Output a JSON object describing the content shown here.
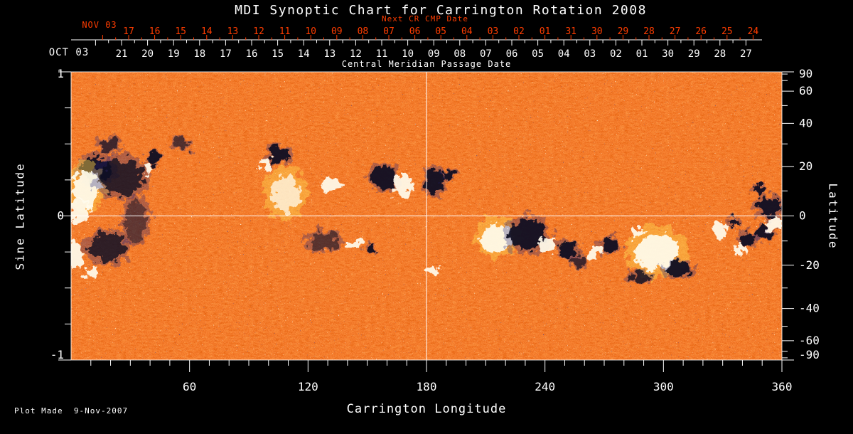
{
  "title": "MDI Synoptic Chart for Carrington Rotation 2008",
  "colors": {
    "background": "#000000",
    "text_white": "#ffffff",
    "text_red": "#ff3d00",
    "map_base": "#d03404",
    "positive_region": "#fffbec",
    "negative_region": "#07071f",
    "positive_halo": "#ffd44f",
    "crosshair": "#ffffff"
  },
  "top_axis": {
    "next_cr_label": "Next CR CMP Date",
    "next_month_label": "NOV 03",
    "next_days": [
      "17",
      "16",
      "15",
      "14",
      "13",
      "12",
      "11",
      "10",
      "09",
      "08",
      "07",
      "06",
      "05",
      "04",
      "03",
      "02",
      "01",
      "31",
      "30",
      "29",
      "28",
      "27",
      "26",
      "25",
      "24"
    ],
    "month_label": "OCT 03",
    "days": [
      "21",
      "20",
      "19",
      "18",
      "17",
      "16",
      "15",
      "14",
      "13",
      "12",
      "11",
      "10",
      "09",
      "08",
      "07",
      "06",
      "05",
      "04",
      "03",
      "02",
      "01",
      "30",
      "29",
      "28",
      "27"
    ],
    "axis_title": "Central Meridian Passage Date"
  },
  "left_axis": {
    "title": "Sine Latitude",
    "ticks": [
      "1",
      "0",
      "-1"
    ],
    "tick_values": [
      1,
      0,
      -1
    ],
    "minor_tick_values": [
      0.75,
      0.5,
      0.25,
      -0.25,
      -0.5,
      -0.75
    ]
  },
  "right_axis": {
    "title": "Latitude",
    "ticks": [
      "90",
      "60",
      "40",
      "20",
      "0",
      "-20",
      "-40",
      "-60",
      "-90"
    ],
    "tick_values": [
      90,
      60,
      40,
      20,
      0,
      -20,
      -40,
      -60,
      -90
    ],
    "minor_tick_values": [
      80,
      70,
      50,
      30,
      10,
      -10,
      -30,
      -50,
      -70,
      -80
    ]
  },
  "bottom_axis": {
    "title": "Carrington Longitude",
    "ticks": [
      "60",
      "120",
      "180",
      "240",
      "300",
      "360"
    ],
    "tick_values": [
      60,
      120,
      180,
      240,
      300,
      360
    ],
    "minor_step_deg": 10
  },
  "footer": "Plot Made  9-Nov-2007",
  "chart_data": {
    "type": "heatmap",
    "title": "MDI Synoptic Chart for Carrington Rotation 2008",
    "xlabel": "Carrington Longitude",
    "ylabel_left": "Sine Latitude",
    "ylabel_right": "Latitude",
    "x_range_deg": [
      0,
      360
    ],
    "y_range_sine": [
      -1,
      1
    ],
    "legend_position": "none",
    "grid": false,
    "crosshair": {
      "longitude_deg": 180,
      "sine_latitude": 0
    },
    "background_field": "noisy red-orange photospheric magnetic field texture with sparse navy and cream speckles",
    "features_note": "active regions; p=positive(white), ph=positive with yellow halo, n=negative(dark navy/black); w in degrees longitude, h in sine-latitude units",
    "features": [
      {
        "lon": 12.9,
        "slat": 0.32,
        "w": 15.8,
        "h": 0.18,
        "p": "n"
      },
      {
        "lon": 7.5,
        "slat": 0.2,
        "w": 13,
        "h": 0.25,
        "p": "ph"
      },
      {
        "lon": 4,
        "slat": 0.03,
        "w": 10.8,
        "h": 0.2,
        "p": "p"
      },
      {
        "lon": 25.5,
        "slat": 0.27,
        "w": 21.6,
        "h": 0.25,
        "p": "n",
        "o": 0.8
      },
      {
        "lon": 18.3,
        "slat": -0.22,
        "w": 18,
        "h": 0.2,
        "p": "n",
        "o": 0.8
      },
      {
        "lon": 2.2,
        "slat": -0.27,
        "w": 8.6,
        "h": 0.18,
        "p": "p"
      },
      {
        "lon": 10.4,
        "slat": -0.4,
        "w": 8.6,
        "h": 0.1,
        "p": "p"
      },
      {
        "lon": 32.7,
        "slat": -0.03,
        "w": 10.8,
        "h": 0.28,
        "p": "n",
        "o": 0.5
      },
      {
        "lon": 41.7,
        "slat": 0.4,
        "w": 7.2,
        "h": 0.08,
        "p": "n"
      },
      {
        "lon": 39.2,
        "slat": 0.33,
        "w": 5.8,
        "h": 0.06,
        "p": "p"
      },
      {
        "lon": 105.3,
        "slat": 0.43,
        "w": 11.5,
        "h": 0.11,
        "p": "n"
      },
      {
        "lon": 99.2,
        "slat": 0.36,
        "w": 6.5,
        "h": 0.07,
        "p": "p"
      },
      {
        "lon": 108.8,
        "slat": 0.16,
        "w": 14.4,
        "h": 0.26,
        "p": "ph",
        "o": 0.75
      },
      {
        "lon": 130.8,
        "slat": 0.21,
        "w": 9.4,
        "h": 0.1,
        "p": "p"
      },
      {
        "lon": 158.4,
        "slat": 0.27,
        "w": 13,
        "h": 0.16,
        "p": "n"
      },
      {
        "lon": 167.8,
        "slat": 0.21,
        "w": 10.1,
        "h": 0.18,
        "p": "p"
      },
      {
        "lon": 184.3,
        "slat": 0.24,
        "w": 9.4,
        "h": 0.18,
        "p": "n"
      },
      {
        "lon": 191.5,
        "slat": 0.29,
        "w": 6.5,
        "h": 0.07,
        "p": "n"
      },
      {
        "lon": 182.5,
        "slat": -0.38,
        "w": 5.8,
        "h": 0.06,
        "p": "p"
      },
      {
        "lon": 127.9,
        "slat": -0.18,
        "w": 15.8,
        "h": 0.12,
        "p": "n",
        "o": 0.55
      },
      {
        "lon": 143,
        "slat": -0.2,
        "w": 7.2,
        "h": 0.08,
        "p": "p"
      },
      {
        "lon": 152.3,
        "slat": -0.23,
        "w": 5.8,
        "h": 0.06,
        "p": "n"
      },
      {
        "lon": 215.9,
        "slat": -0.15,
        "w": 15.8,
        "h": 0.2,
        "p": "ph"
      },
      {
        "lon": 231,
        "slat": -0.13,
        "w": 18.7,
        "h": 0.22,
        "p": "n"
      },
      {
        "lon": 241.1,
        "slat": -0.2,
        "w": 8.6,
        "h": 0.1,
        "p": "p"
      },
      {
        "lon": 251.8,
        "slat": -0.23,
        "w": 10.1,
        "h": 0.1,
        "p": "n"
      },
      {
        "lon": 264.8,
        "slat": -0.25,
        "w": 7.2,
        "h": 0.08,
        "p": "p"
      },
      {
        "lon": 272.7,
        "slat": -0.2,
        "w": 8.6,
        "h": 0.1,
        "p": "n"
      },
      {
        "lon": 257.2,
        "slat": -0.32,
        "w": 8.6,
        "h": 0.08,
        "p": "n",
        "o": 0.7
      },
      {
        "lon": 296.8,
        "slat": -0.25,
        "w": 21.6,
        "h": 0.25,
        "p": "ph"
      },
      {
        "lon": 307.5,
        "slat": -0.37,
        "w": 13,
        "h": 0.11,
        "p": "n"
      },
      {
        "lon": 287.8,
        "slat": -0.42,
        "w": 10.1,
        "h": 0.08,
        "p": "n",
        "o": 0.8
      },
      {
        "lon": 286,
        "slat": -0.11,
        "w": 6.5,
        "h": 0.07,
        "p": "p"
      },
      {
        "lon": 328.4,
        "slat": -0.1,
        "w": 7.2,
        "h": 0.12,
        "p": "p"
      },
      {
        "lon": 335.2,
        "slat": -0.04,
        "w": 6.5,
        "h": 0.07,
        "p": "n"
      },
      {
        "lon": 342.7,
        "slat": -0.16,
        "w": 8.6,
        "h": 0.1,
        "p": "n"
      },
      {
        "lon": 338.8,
        "slat": -0.23,
        "w": 5.8,
        "h": 0.06,
        "p": "p"
      },
      {
        "lon": 353.5,
        "slat": 0.06,
        "w": 12.2,
        "h": 0.13,
        "p": "n"
      },
      {
        "lon": 356,
        "slat": -0.05,
        "w": 8.6,
        "h": 0.1,
        "p": "p"
      },
      {
        "lon": 351,
        "slat": -0.12,
        "w": 7.2,
        "h": 0.08,
        "p": "n"
      },
      {
        "lon": 348.2,
        "slat": 0.18,
        "w": 6.5,
        "h": 0.07,
        "p": "n"
      },
      {
        "lon": 56,
        "slat": 0.5,
        "w": 8.6,
        "h": 0.08,
        "p": "n",
        "o": 0.6
      },
      {
        "lon": 19,
        "slat": 0.49,
        "w": 10.1,
        "h": 0.09,
        "p": "n",
        "o": 0.7
      }
    ]
  }
}
